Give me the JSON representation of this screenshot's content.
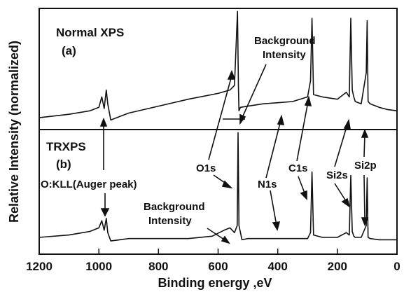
{
  "chart_data": [
    {
      "type": "line",
      "panel_title": "Normal XPS",
      "panel_letter": "(a)",
      "xlabel": "Binding energy ,eV",
      "ylabel": "Relative Intensity (normalized)",
      "xlim": [
        1200,
        0
      ],
      "x_ticks": [
        "1200",
        "1000",
        "800",
        "600",
        "400",
        "200",
        "0"
      ],
      "y_ticks_shown": false,
      "grid": false,
      "annotations": [
        "Background Intensity"
      ],
      "series": [
        {
          "x": [
            1200,
            1100,
            1030,
            1000,
            990,
            982,
            975,
            970,
            960,
            930,
            900,
            800,
            700,
            600,
            560,
            545,
            535,
            532,
            530,
            525,
            500,
            450,
            400,
            350,
            300,
            290,
            285,
            280,
            250,
            200,
            170,
            160,
            155,
            150,
            145,
            140,
            120,
            103,
            100,
            97,
            90,
            60,
            30,
            0
          ],
          "y": [
            0.06,
            0.09,
            0.12,
            0.15,
            0.24,
            0.14,
            0.3,
            0.18,
            0.04,
            0.07,
            0.1,
            0.16,
            0.22,
            0.27,
            0.3,
            0.34,
            0.98,
            0.34,
            0.12,
            0.15,
            0.16,
            0.18,
            0.19,
            0.2,
            0.24,
            0.38,
            0.92,
            0.26,
            0.24,
            0.22,
            0.28,
            0.24,
            0.92,
            0.3,
            0.24,
            0.2,
            0.18,
            0.45,
            0.9,
            0.2,
            0.18,
            0.15,
            0.13,
            0.12
          ]
        }
      ]
    },
    {
      "type": "line",
      "panel_title": "TRXPS",
      "panel_letter": "(b)",
      "xlim": [
        1200,
        0
      ],
      "annotations": [
        "O:KLL(Auger peak)",
        "O1s",
        "N1s",
        "C1s",
        "Si2s",
        "Si2p",
        "Background Intensity"
      ],
      "series": [
        {
          "x": [
            1200,
            1100,
            1030,
            1000,
            990,
            982,
            975,
            970,
            960,
            930,
            900,
            800,
            700,
            620,
            580,
            560,
            545,
            536,
            533,
            530,
            520,
            500,
            450,
            400,
            350,
            300,
            290,
            285,
            280,
            250,
            200,
            170,
            160,
            155,
            150,
            145,
            140,
            120,
            103,
            100,
            97,
            90,
            60,
            30,
            0
          ],
          "y": [
            0.1,
            0.12,
            0.15,
            0.18,
            0.24,
            0.16,
            0.26,
            0.14,
            0.07,
            0.08,
            0.09,
            0.09,
            0.09,
            0.11,
            0.16,
            0.18,
            0.14,
            0.2,
            0.98,
            0.2,
            0.08,
            0.09,
            0.09,
            0.09,
            0.09,
            0.09,
            0.14,
            0.65,
            0.12,
            0.1,
            0.1,
            0.14,
            0.12,
            0.62,
            0.15,
            0.11,
            0.1,
            0.1,
            0.2,
            0.6,
            0.1,
            0.09,
            0.08,
            0.08,
            0.08
          ]
        }
      ]
    }
  ]
}
